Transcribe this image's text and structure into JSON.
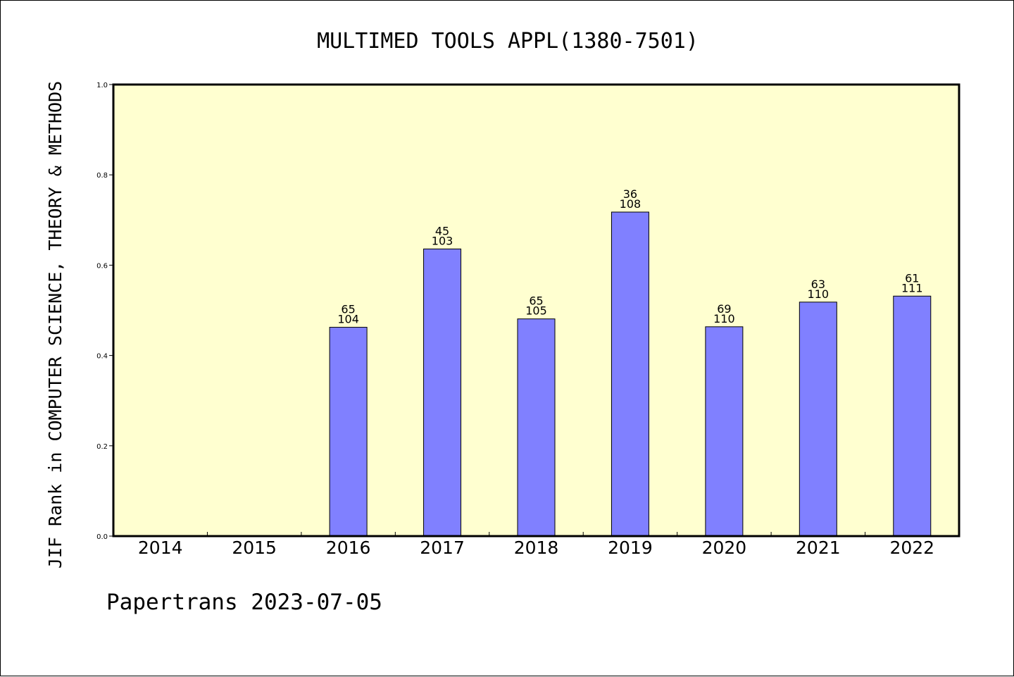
{
  "chart_data": {
    "type": "bar",
    "title": "MULTIMED TOOLS APPL(1380-7501)",
    "xlabel": "",
    "ylabel": "JIF Rank in COMPUTER SCIENCE, THEORY & METHODS",
    "ylim": [
      0,
      1.0
    ],
    "yticks": [
      "0.0",
      "0.2",
      "0.4",
      "0.6",
      "0.8",
      "1.0"
    ],
    "categories": [
      "2014",
      "2015",
      "2016",
      "2017",
      "2018",
      "2019",
      "2020",
      "2021",
      "2022"
    ],
    "values": [
      null,
      null,
      0.4625,
      0.6359,
      0.481,
      0.7176,
      0.4636,
      0.5182,
      0.5315
    ],
    "rank": [
      null,
      null,
      "65",
      "45",
      "65",
      "36",
      "69",
      "63",
      "61"
    ],
    "total": [
      null,
      null,
      "104",
      "103",
      "105",
      "108",
      "110",
      "110",
      "111"
    ],
    "grid": false,
    "colors": {
      "plot_background": "#ffffd0",
      "bar_fill": "#8080ff",
      "bar_stroke": "#000000"
    }
  },
  "footer": "Papertrans 2023-07-05"
}
